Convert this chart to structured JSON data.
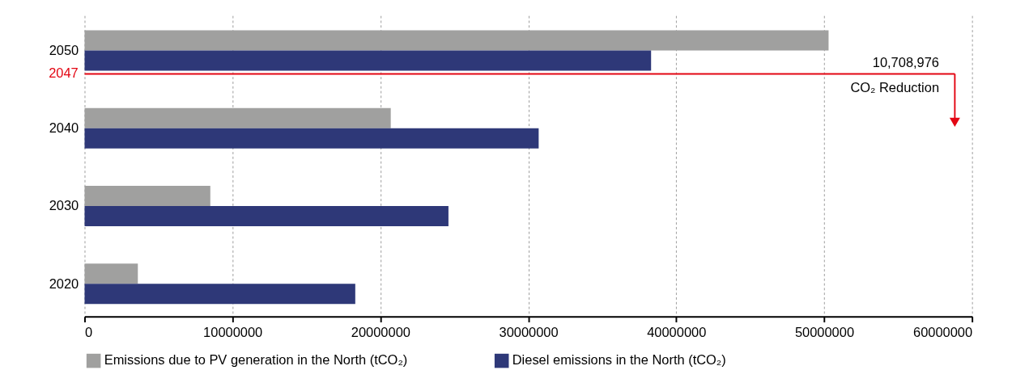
{
  "chart_data": {
    "type": "bar",
    "orientation": "horizontal",
    "x": [
      2050,
      2040,
      2030,
      2020
    ],
    "series": [
      {
        "name": "Emissions due to PV generation in the North (tCO₂)",
        "color": "#a0a09f",
        "values": [
          50300000,
          20700000,
          8500000,
          3600000
        ]
      },
      {
        "name": "Diesel emissions in the North (tCO₂)",
        "color": "#2e3878",
        "values": [
          38300000,
          30700000,
          24600000,
          18300000
        ]
      }
    ],
    "xlim": [
      0,
      60000000
    ],
    "xticks": [
      0,
      10000000,
      20000000,
      30000000,
      40000000,
      50000000,
      60000000
    ],
    "ylim": [
      2015.8,
      2054.5
    ],
    "yticks": [
      2020,
      2030,
      2040,
      2050
    ],
    "ref_lines": [
      {
        "axis": "y",
        "value": 2047,
        "label": "2047",
        "color": "#e30613"
      }
    ],
    "annotations": [
      "10,708,976",
      "CO₂ Reduction"
    ],
    "grid": "x",
    "legend": "bottom"
  }
}
